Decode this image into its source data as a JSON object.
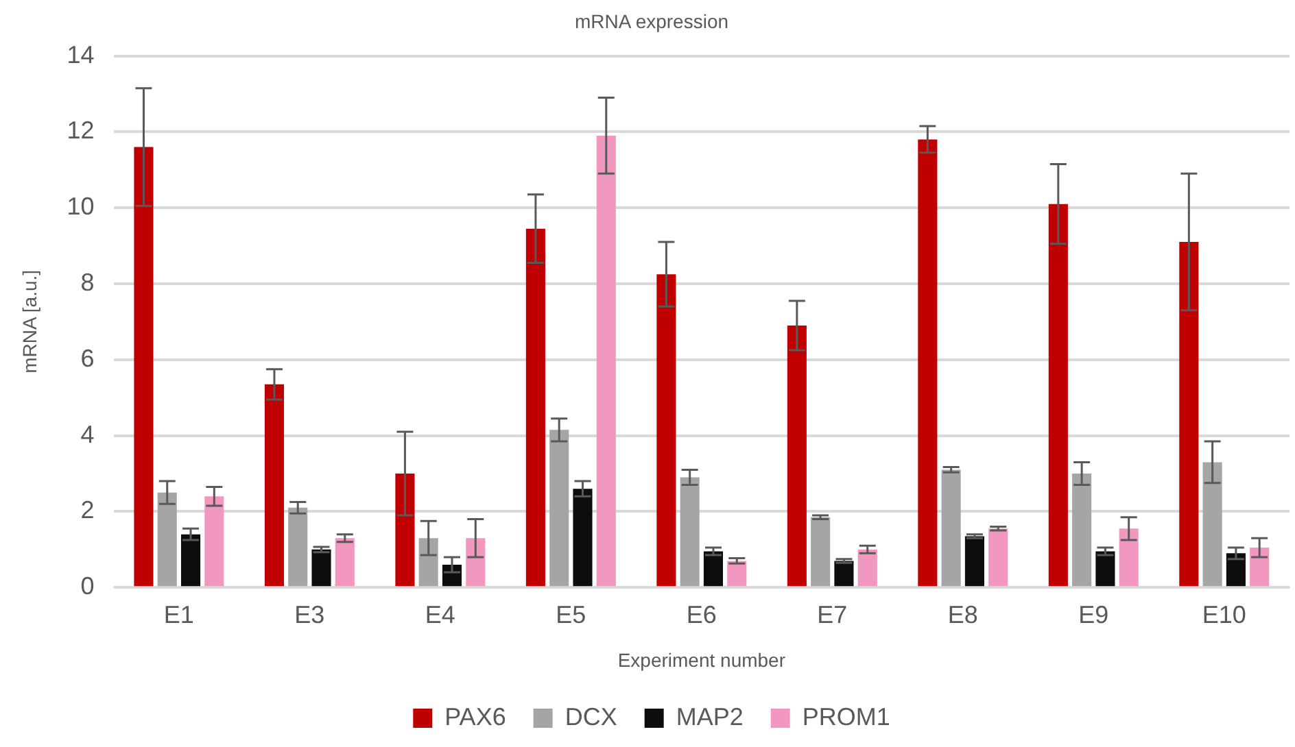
{
  "chart_data": {
    "type": "bar",
    "title": "mRNA expression",
    "xlabel": "Experiment number",
    "ylabel": "mRNA [a.u.]",
    "categories": [
      "E1",
      "E3",
      "E4",
      "E5",
      "E6",
      "E7",
      "E8",
      "E9",
      "E10"
    ],
    "series": [
      {
        "name": "PAX6",
        "color": "#c00000",
        "values": [
          11.6,
          5.35,
          3.0,
          9.45,
          8.25,
          6.9,
          11.8,
          10.1,
          9.1
        ],
        "errors": [
          1.55,
          0.4,
          1.1,
          0.9,
          0.85,
          0.65,
          0.35,
          1.05,
          1.8
        ]
      },
      {
        "name": "DCX",
        "color": "#a5a5a5",
        "values": [
          2.5,
          2.1,
          1.3,
          4.15,
          2.9,
          1.85,
          3.1,
          3.0,
          3.3
        ],
        "errors": [
          0.3,
          0.15,
          0.45,
          0.3,
          0.2,
          0.05,
          0.07,
          0.3,
          0.55
        ]
      },
      {
        "name": "MAP2",
        "color": "#0d0d0d",
        "values": [
          1.4,
          1.0,
          0.6,
          2.6,
          0.95,
          0.7,
          1.35,
          0.95,
          0.9
        ],
        "errors": [
          0.15,
          0.07,
          0.2,
          0.2,
          0.1,
          0.05,
          0.05,
          0.1,
          0.15
        ]
      },
      {
        "name": "PROM1",
        "color": "#f197c0",
        "values": [
          2.4,
          1.3,
          1.3,
          11.9,
          0.7,
          1.0,
          1.55,
          1.55,
          1.05
        ],
        "errors": [
          0.25,
          0.1,
          0.5,
          1.0,
          0.07,
          0.1,
          0.05,
          0.3,
          0.25
        ]
      }
    ],
    "ylim": [
      0,
      14
    ],
    "yticks": [
      0,
      2,
      4,
      6,
      8,
      10,
      12,
      14
    ],
    "grid": "y",
    "legend": "bottom"
  }
}
